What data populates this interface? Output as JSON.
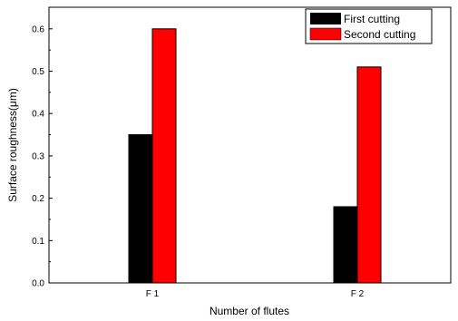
{
  "chart_data": {
    "type": "bar",
    "title": "",
    "xlabel": "Number of flutes",
    "ylabel": "Surface roughness(μm)",
    "categories": [
      "F 1",
      "F 2"
    ],
    "series": [
      {
        "name": "First cutting",
        "values": [
          0.35,
          0.18
        ],
        "color": "#000000"
      },
      {
        "name": "Second cutting",
        "values": [
          0.6,
          0.51
        ],
        "color": "#ff0000"
      }
    ],
    "ylim": [
      0,
      0.65
    ],
    "yticks": [
      "0.0",
      "0.1",
      "0.2",
      "0.3",
      "0.4",
      "0.5",
      "0.6"
    ],
    "grid": false,
    "legend_position": "top-right"
  }
}
